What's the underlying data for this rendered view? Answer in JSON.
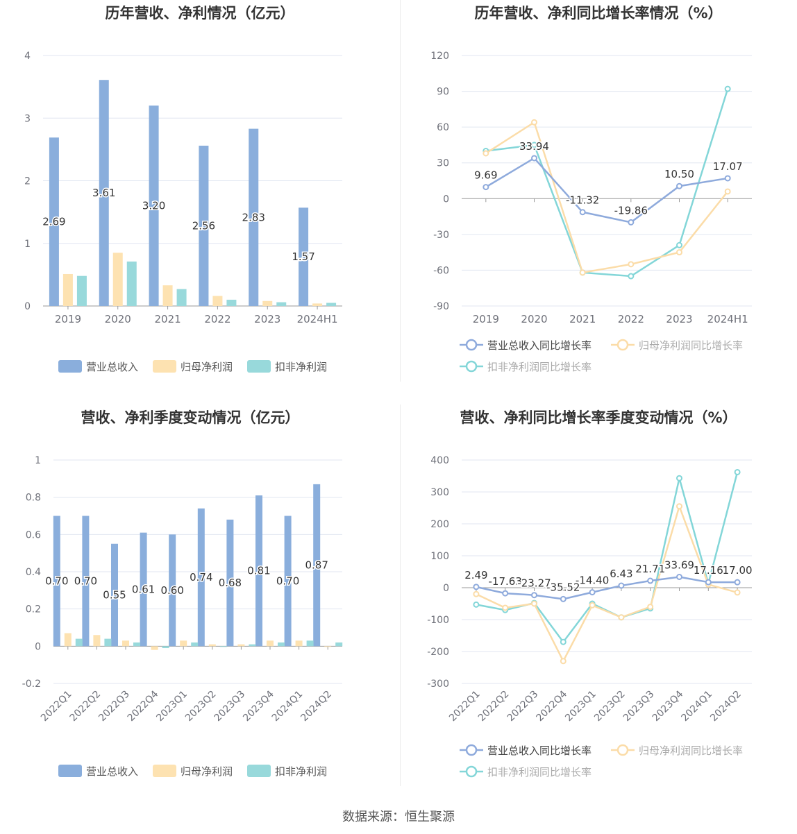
{
  "source": "数据来源：恒生聚源",
  "colors": {
    "revenue": "#8aaedc",
    "parent_np": "#fde2b1",
    "deducted_np": "#98d9db",
    "line_revenue": "#8eaadc",
    "line_parent": "#fbdca8",
    "line_deducted": "#83d6d8",
    "axis_text": "#6e7079",
    "grid": "#e0e6f1",
    "title": "#333333"
  },
  "chart_data": [
    {
      "type": "bar",
      "title": "历年营收、净利情况（亿元）",
      "categories": [
        "2019",
        "2020",
        "2021",
        "2022",
        "2023",
        "2024H1"
      ],
      "ylim": [
        0,
        4
      ],
      "yticks": [
        "0",
        "1",
        "2",
        "3",
        "4"
      ],
      "legend_position": "bottom",
      "series": [
        {
          "name": "营业总收入",
          "values": [
            2.69,
            3.61,
            3.2,
            2.56,
            2.83,
            1.57
          ],
          "labels": [
            "2.69",
            "3.61",
            "3.20",
            "2.56",
            "2.83",
            "1.57"
          ]
        },
        {
          "name": "归母净利润",
          "values": [
            0.51,
            0.85,
            0.33,
            0.16,
            0.08,
            0.04
          ]
        },
        {
          "name": "扣非净利润",
          "values": [
            0.48,
            0.71,
            0.27,
            0.1,
            0.06,
            0.05
          ]
        }
      ]
    },
    {
      "type": "line",
      "title": "历年营收、净利同比增长率情况（%）",
      "categories": [
        "2019",
        "2020",
        "2021",
        "2022",
        "2023",
        "2024H1"
      ],
      "ylim": [
        -90,
        120
      ],
      "yticks": [
        "-90",
        "-60",
        "-30",
        "0",
        "30",
        "60",
        "90",
        "120"
      ],
      "legend_position": "bottom",
      "series": [
        {
          "name": "营业总收入同比增长率",
          "values": [
            9.69,
            33.94,
            -11.32,
            -19.86,
            10.5,
            17.07
          ],
          "labels": [
            "9.69",
            "33.94",
            "-11.32",
            "-19.86",
            "10.50",
            "17.07"
          ]
        },
        {
          "name": "归母净利润同比增长率",
          "values": [
            38,
            64,
            -62,
            -55,
            -45,
            6
          ]
        },
        {
          "name": "扣非净利润同比增长率",
          "values": [
            40,
            45,
            -62,
            -65,
            -39,
            92
          ]
        }
      ]
    },
    {
      "type": "bar",
      "title": "营收、净利季度变动情况（亿元）",
      "categories": [
        "2022Q1",
        "2022Q2",
        "2022Q3",
        "2022Q4",
        "2023Q1",
        "2023Q2",
        "2023Q3",
        "2023Q4",
        "2024Q1",
        "2024Q2"
      ],
      "ylim": [
        -0.2,
        1
      ],
      "yticks": [
        "-0.2",
        "0",
        "0.2",
        "0.4",
        "0.6",
        "0.8",
        "1"
      ],
      "legend_position": "bottom",
      "series": [
        {
          "name": "营业总收入",
          "values": [
            0.7,
            0.7,
            0.55,
            0.61,
            0.6,
            0.74,
            0.68,
            0.81,
            0.7,
            0.87
          ],
          "labels": [
            "0.70",
            "0.70",
            "0.55",
            "0.61",
            "0.60",
            "0.74",
            "0.68",
            "0.81",
            "0.70",
            "0.87"
          ]
        },
        {
          "name": "归母净利润",
          "values": [
            0.07,
            0.06,
            0.03,
            -0.02,
            0.03,
            0.01,
            0.01,
            0.03,
            0.03,
            0.0
          ]
        },
        {
          "name": "扣非净利润",
          "values": [
            0.04,
            0.04,
            0.02,
            -0.01,
            0.02,
            0.0,
            0.01,
            0.02,
            0.03,
            0.02
          ]
        }
      ]
    },
    {
      "type": "line",
      "title": "营收、净利同比增长率季度变动情况（%）",
      "categories": [
        "2022Q1",
        "2022Q2",
        "2022Q3",
        "2022Q4",
        "2023Q1",
        "2023Q2",
        "2023Q3",
        "2023Q4",
        "2024Q1",
        "2024Q2"
      ],
      "ylim": [
        -300,
        400
      ],
      "yticks": [
        "-300",
        "-200",
        "-100",
        "0",
        "100",
        "200",
        "300",
        "400"
      ],
      "legend_position": "bottom",
      "series": [
        {
          "name": "营业总收入同比增长率",
          "values": [
            2.49,
            -17.63,
            -23.27,
            -35.52,
            -14.4,
            6.43,
            21.71,
            33.69,
            17.16,
            17.0
          ],
          "labels": [
            "2.49",
            "-17.63",
            "-23.27",
            "-35.52",
            "-14.40",
            "6.43",
            "21.71",
            "33.69",
            "17.16",
            "17.00"
          ]
        },
        {
          "name": "归母净利润同比增长率",
          "values": [
            -20,
            -63,
            -50,
            -230,
            -55,
            -93,
            -60,
            255,
            10,
            -15
          ]
        },
        {
          "name": "扣非净利润同比增长率",
          "values": [
            -53,
            -70,
            -48,
            -170,
            -50,
            -93,
            -65,
            343,
            13,
            362
          ]
        }
      ]
    }
  ]
}
